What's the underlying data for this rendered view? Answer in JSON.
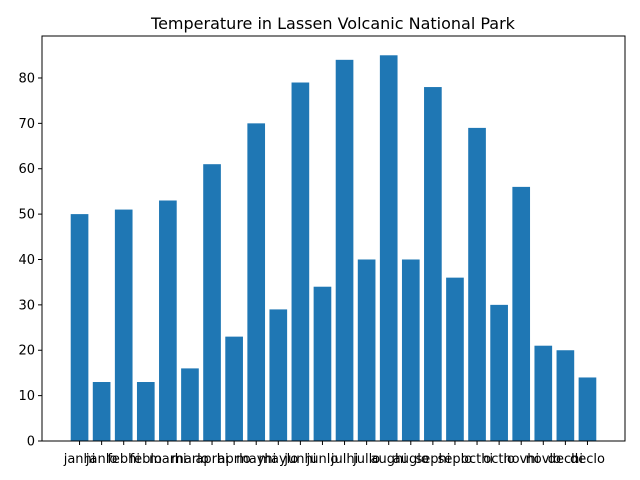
{
  "chart_data": {
    "type": "bar",
    "title": "Temperature in Lassen Volcanic National Park",
    "xlabel": "",
    "ylabel": "",
    "categories": [
      "janhi",
      "janlo",
      "febhi",
      "feblo",
      "marhi",
      "marlo",
      "aprhi",
      "aprlo",
      "mayhi",
      "maylo",
      "junhi",
      "junlo",
      "julhi",
      "jullo",
      "aughi",
      "auglo",
      "sephi",
      "seplo",
      "octhi",
      "octlo",
      "novhi",
      "novlo",
      "dechi",
      "declo"
    ],
    "values": [
      50,
      13,
      51,
      13,
      53,
      16,
      61,
      23,
      70,
      29,
      79,
      34,
      84,
      40,
      85,
      40,
      78,
      36,
      69,
      30,
      56,
      21,
      20,
      14
    ],
    "ylim": [
      0,
      89.25
    ],
    "yticks": [
      0,
      10,
      20,
      30,
      40,
      50,
      60,
      70,
      80
    ],
    "bar_color": "#1f77b4",
    "grid": false
  }
}
